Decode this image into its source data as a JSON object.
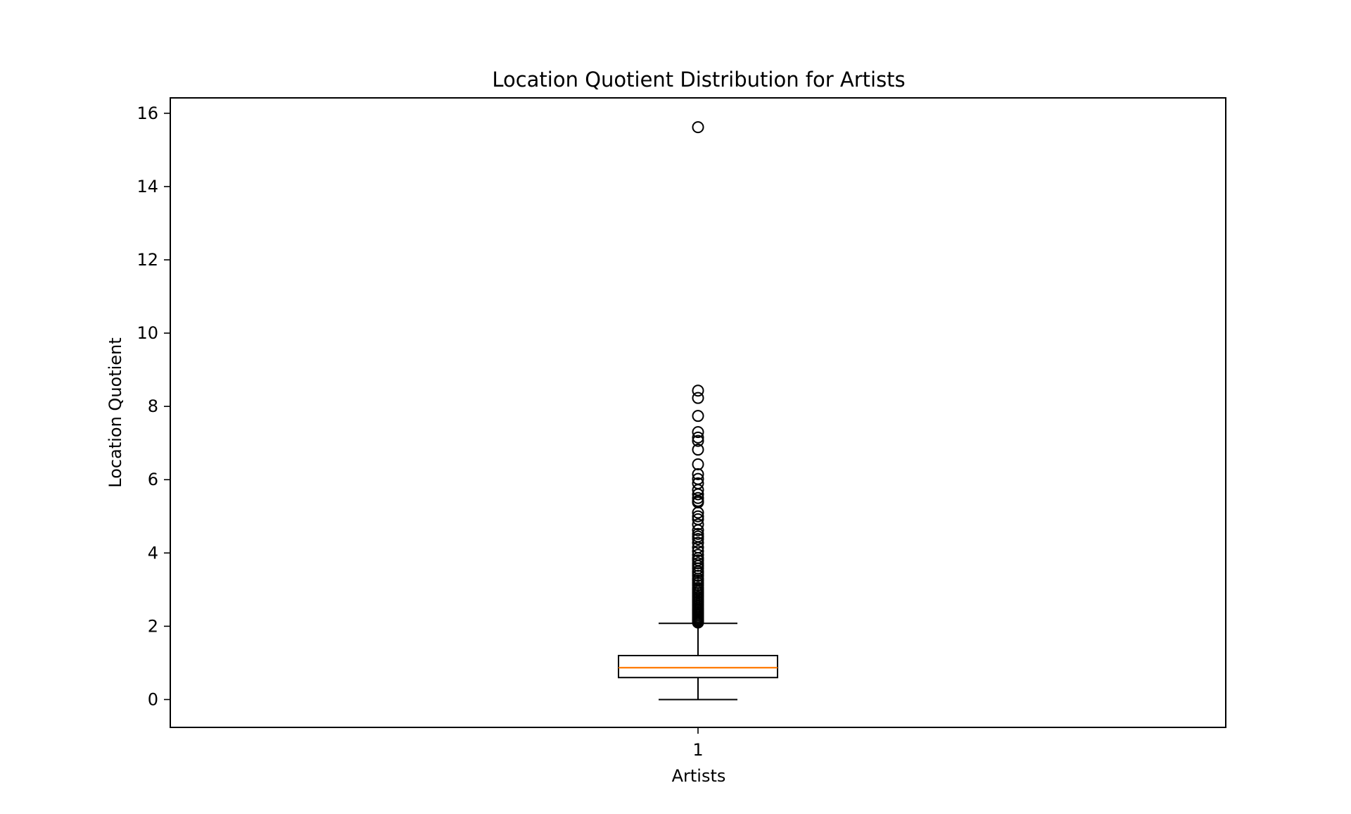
{
  "chart_data": {
    "type": "boxplot",
    "title": "Location Quotient Distribution for Artists",
    "xlabel": "Artists",
    "ylabel": "Location Quotient",
    "categories": [
      "1"
    ],
    "ylim": [
      -0.76,
      16.42
    ],
    "yticks": [
      0,
      2,
      4,
      6,
      8,
      10,
      12,
      14,
      16
    ],
    "grid": false,
    "legend": "none",
    "colors": {
      "box_edge": "#000000",
      "median": "#ff7f0e",
      "outlier_edge": "#000000"
    },
    "box": {
      "whisker_low": 0.0,
      "q1": 0.6,
      "median": 0.87,
      "q3": 1.2,
      "whisker_high": 2.08
    },
    "outliers": [
      15.62,
      8.43,
      8.23,
      7.74,
      7.3,
      7.15,
      7.06,
      6.82,
      6.42,
      6.15,
      6.02,
      5.9,
      5.72,
      5.6,
      5.5,
      5.42,
      5.38,
      5.1,
      5.0,
      4.92,
      4.78,
      4.62,
      4.52,
      4.45,
      4.38,
      4.28,
      4.15,
      4.05,
      3.95,
      3.86,
      3.8,
      3.72,
      3.65,
      3.58,
      3.5,
      3.45,
      3.38,
      3.3,
      3.25,
      3.18,
      3.12,
      3.05,
      3.0,
      2.95,
      2.9,
      2.85,
      2.8,
      2.75,
      2.7,
      2.65,
      2.6,
      2.55,
      2.5,
      2.46,
      2.42,
      2.38,
      2.34,
      2.3,
      2.26,
      2.22,
      2.18,
      2.15,
      2.12,
      2.1
    ]
  }
}
